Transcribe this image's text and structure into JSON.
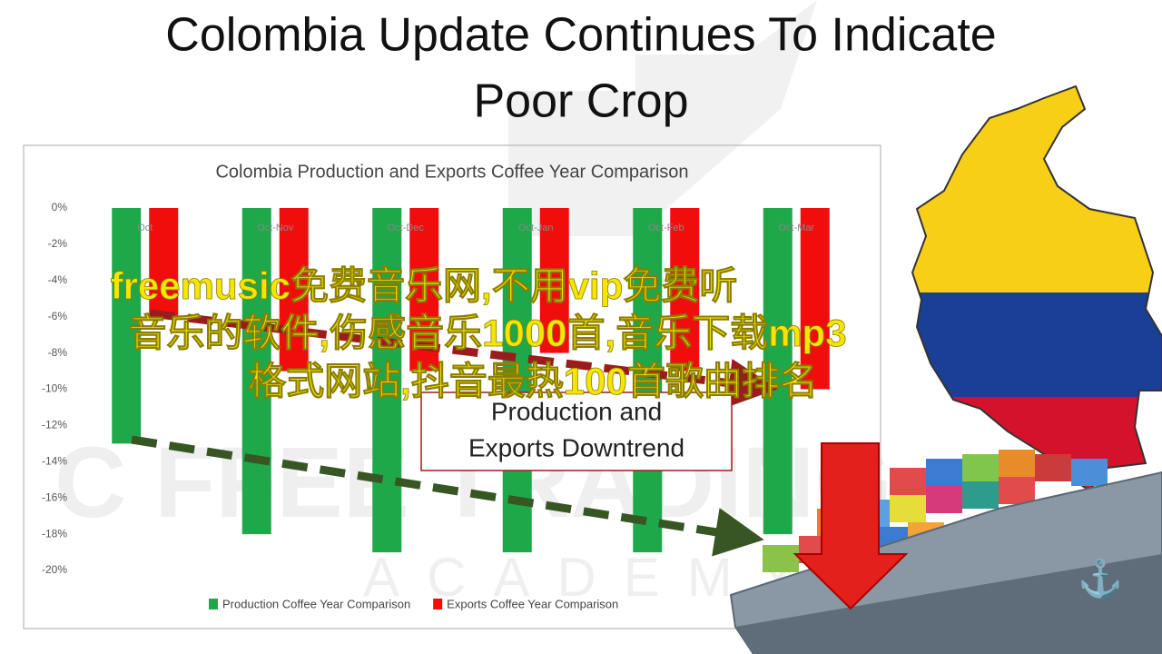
{
  "page": {
    "title_lines": [
      "Colombia Update Continues To Indicate",
      "Poor Crop"
    ],
    "overlay_text": [
      "freemusic免费音乐网,不用vip免费听",
      "音乐的软件,伤感音乐1000首,音乐下载mp3",
      "格式网站,抖音最热100首歌曲排名"
    ],
    "watermark": [
      "C FFEE TRADING",
      "ACADEMY"
    ]
  },
  "chart_data": {
    "type": "bar",
    "title": "Colombia Production and Exports Coffee Year Comparison",
    "categories": [
      "Oct",
      "Oct-Nov",
      "Oct-Dec",
      "Oct-Jan",
      "Oct-Feb",
      "Oct-Mar"
    ],
    "series": [
      {
        "name": "Production Coffee Year Comparison",
        "color": "#1fa84a",
        "values": [
          -13,
          -18,
          -19,
          -19,
          -19,
          -18
        ]
      },
      {
        "name": "Exports Coffee Year Comparison",
        "color": "#f20d0d",
        "values": [
          -6,
          -9,
          -9,
          -8,
          -9,
          -10
        ]
      }
    ],
    "ylim": [
      -20,
      0
    ],
    "yticks": [
      {
        "value": 0,
        "label": "0%"
      },
      {
        "value": -2,
        "label": "-2%"
      },
      {
        "value": -4,
        "label": "-4%"
      },
      {
        "value": -6,
        "label": "-6%"
      },
      {
        "value": -8,
        "label": "-8%"
      },
      {
        "value": -10,
        "label": "-10%"
      },
      {
        "value": -12,
        "label": "-12%"
      },
      {
        "value": -14,
        "label": "-14%"
      },
      {
        "value": -16,
        "label": "-16%"
      },
      {
        "value": -18,
        "label": "-18%"
      },
      {
        "value": -20,
        "label": "-20%"
      }
    ],
    "grid": false,
    "legend": "bottom",
    "annotation": [
      "Production and",
      "Exports Downtrend"
    ]
  }
}
